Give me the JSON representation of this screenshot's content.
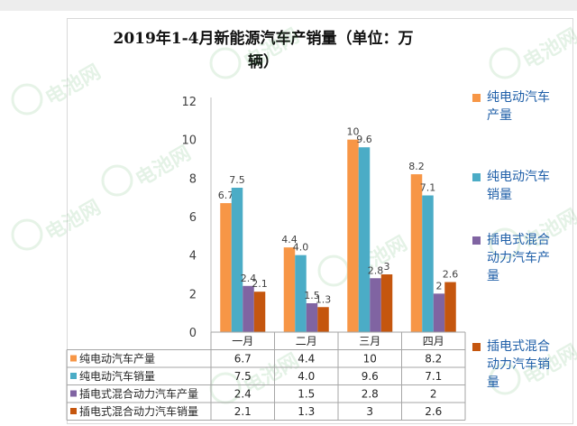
{
  "colors": {
    "series": [
      "#f79646",
      "#4bacc6",
      "#8064a2",
      "#c5560e"
    ],
    "legend_text": "#1f5fa8",
    "watermark": "#2e9a3a"
  },
  "watermark": {
    "text": "电池网"
  },
  "chart_data": {
    "type": "bar",
    "title": "2019年1-4月新能源汽车产销量（单位：万辆）",
    "title_lines": [
      "2019年1-4月新能源汽车产销量（单位：万",
      "辆）"
    ],
    "categories": [
      "一月",
      "二月",
      "三月",
      "四月"
    ],
    "ylim": [
      0,
      12
    ],
    "yticks": [
      "0",
      "2",
      "4",
      "6",
      "8",
      "10",
      "12"
    ],
    "grid": false,
    "legend_position": "right",
    "series": [
      {
        "name": "纯电动汽车产量",
        "legend_lines": [
          "纯电动汽车",
          "产量"
        ],
        "values": [
          6.7,
          4.4,
          10,
          8.2
        ],
        "labels": [
          "6.7",
          "4.4",
          "10",
          "8.2"
        ]
      },
      {
        "name": "纯电动汽车销量",
        "legend_lines": [
          "纯电动汽车",
          "销量"
        ],
        "values": [
          7.5,
          4.0,
          9.6,
          7.1
        ],
        "labels": [
          "7.5",
          "4.0",
          "9.6",
          "7.1"
        ]
      },
      {
        "name": "插电式混合动力汽车产量",
        "legend_lines": [
          "插电式混合",
          "动力汽车产",
          "量"
        ],
        "values": [
          2.4,
          1.5,
          2.8,
          2
        ],
        "labels": [
          "2.4",
          "1.5",
          "2.8",
          "2"
        ]
      },
      {
        "name": "插电式混合动力汽车销量",
        "legend_lines": [
          "插电式混合",
          "动力汽车销",
          "量"
        ],
        "values": [
          2.1,
          1.3,
          3,
          2.6
        ],
        "labels": [
          "2.1",
          "1.3",
          "3",
          "2.6"
        ]
      }
    ],
    "table": {
      "rows": [
        {
          "label": "纯电动汽车产量",
          "cells": [
            "6.7",
            "4.4",
            "10",
            "8.2"
          ]
        },
        {
          "label": "纯电动汽车销量",
          "cells": [
            "7.5",
            "4.0",
            "9.6",
            "7.1"
          ]
        },
        {
          "label": "插电式混合动力汽车产量",
          "cells": [
            "2.4",
            "1.5",
            "2.8",
            "2"
          ]
        },
        {
          "label": "插电式混合动力汽车销量",
          "cells": [
            "2.1",
            "1.3",
            "3",
            "2.6"
          ]
        }
      ]
    }
  }
}
